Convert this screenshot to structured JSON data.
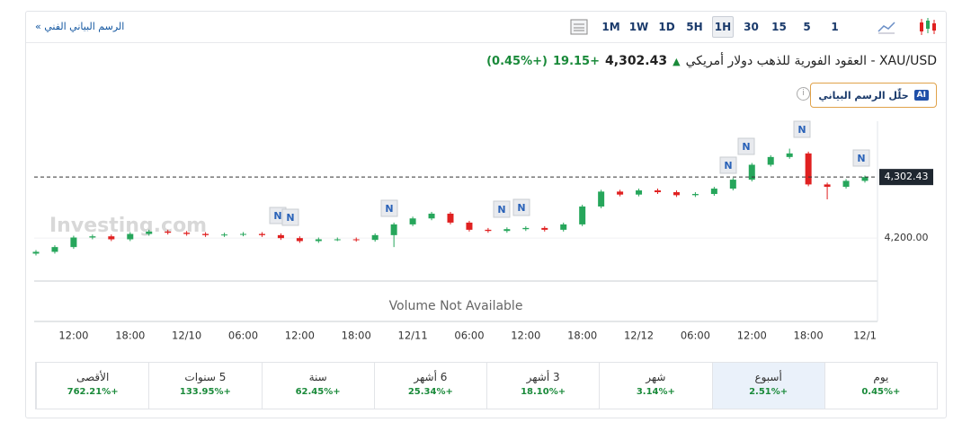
{
  "link": "الرسم البياني الفني »",
  "toolbar": [
    "1M",
    "1W",
    "1D",
    "5H",
    "1H",
    "30",
    "15",
    "5",
    "1"
  ],
  "header": {
    "title": "XAU/USD - العقود الفورية للذهب دولار أمريكي",
    "price": "4,302.43",
    "change": "+19.15",
    "change_pct": "(+0.45%)"
  },
  "ai_button": {
    "badge": "AI",
    "label": "حلّل الرسم البياني"
  },
  "chart_data": {
    "type": "candlestick",
    "watermark": "Investing.com",
    "volume_note": "Volume Not Available",
    "news_marker": "N",
    "categories": [
      null,
      null,
      "12:00",
      null,
      null,
      "18:00",
      null,
      null,
      "12/10",
      null,
      null,
      "06:00",
      null,
      null,
      "12:00",
      null,
      null,
      "18:00",
      null,
      null,
      "12/11",
      null,
      null,
      "06:00",
      null,
      null,
      "12:00",
      null,
      null,
      "18:00",
      null,
      null,
      "12/12",
      null,
      null,
      "06:00",
      null,
      null,
      "12:00",
      null,
      null,
      "18:00",
      null,
      null,
      "12/1"
    ],
    "open": [
      4174,
      4177,
      4185,
      4201,
      4203,
      4198,
      4207,
      4211,
      4209,
      4207,
      4205,
      4206,
      4207,
      4205,
      4200,
      4195,
      4198,
      4198,
      4197,
      4205,
      4223,
      4233,
      4241,
      4226,
      4214,
      4212,
      4215,
      4217,
      4214,
      4223,
      4253,
      4278,
      4273,
      4280,
      4277,
      4272,
      4274,
      4283,
      4298,
      4323,
      4336,
      4342,
      4290,
      4286,
      4296
    ],
    "high": [
      4180,
      4188,
      4204,
      4206,
      4206,
      4210,
      4214,
      4214,
      4212,
      4210,
      4209,
      4210,
      4210,
      4208,
      4203,
      4201,
      4201,
      4201,
      4208,
      4226,
      4236,
      4244,
      4244,
      4229,
      4217,
      4218,
      4220,
      4220,
      4226,
      4256,
      4281,
      4281,
      4283,
      4283,
      4280,
      4277,
      4286,
      4301,
      4326,
      4339,
      4350,
      4345,
      4293,
      4299,
      4305
    ],
    "low": [
      4171,
      4174,
      4182,
      4198,
      4195,
      4195,
      4204,
      4206,
      4204,
      4202,
      4202,
      4203,
      4202,
      4197,
      4192,
      4192,
      4195,
      4194,
      4194,
      4185,
      4220,
      4230,
      4223,
      4211,
      4209,
      4209,
      4212,
      4211,
      4211,
      4220,
      4250,
      4270,
      4270,
      4274,
      4269,
      4269,
      4271,
      4280,
      4295,
      4320,
      4333,
      4287,
      4265,
      4283,
      4293
    ],
    "close": [
      4177,
      4185,
      4201,
      4203,
      4198,
      4207,
      4211,
      4209,
      4207,
      4205,
      4206,
      4207,
      4205,
      4200,
      4195,
      4198,
      4198,
      4197,
      4205,
      4223,
      4233,
      4241,
      4226,
      4214,
      4212,
      4215,
      4217,
      4214,
      4223,
      4253,
      4278,
      4273,
      4280,
      4277,
      4272,
      4274,
      4283,
      4298,
      4323,
      4336,
      4342,
      4290,
      4286,
      4296,
      4302.43
    ],
    "up_color": "#26a65b",
    "down_color": "#e02020",
    "ylim": [
      4128,
      4396
    ],
    "yticks": [
      {
        "value": 4200,
        "label": "4,200.00"
      }
    ],
    "last_price": {
      "value": 4302.43,
      "label": "4,302.43"
    }
  },
  "performance": [
    {
      "label": "يوم",
      "value": "+0.45%"
    },
    {
      "label": "أسبوع",
      "value": "+2.51%"
    },
    {
      "label": "شهر",
      "value": "+3.14%"
    },
    {
      "label": "3 أشهر",
      "value": "+18.10%"
    },
    {
      "label": "6 أشهر",
      "value": "+25.34%"
    },
    {
      "label": "سنة",
      "value": "+62.45%"
    },
    {
      "label": "5 سنوات",
      "value": "+133.95%"
    },
    {
      "label": "الأقصى",
      "value": "+762.21%"
    }
  ]
}
